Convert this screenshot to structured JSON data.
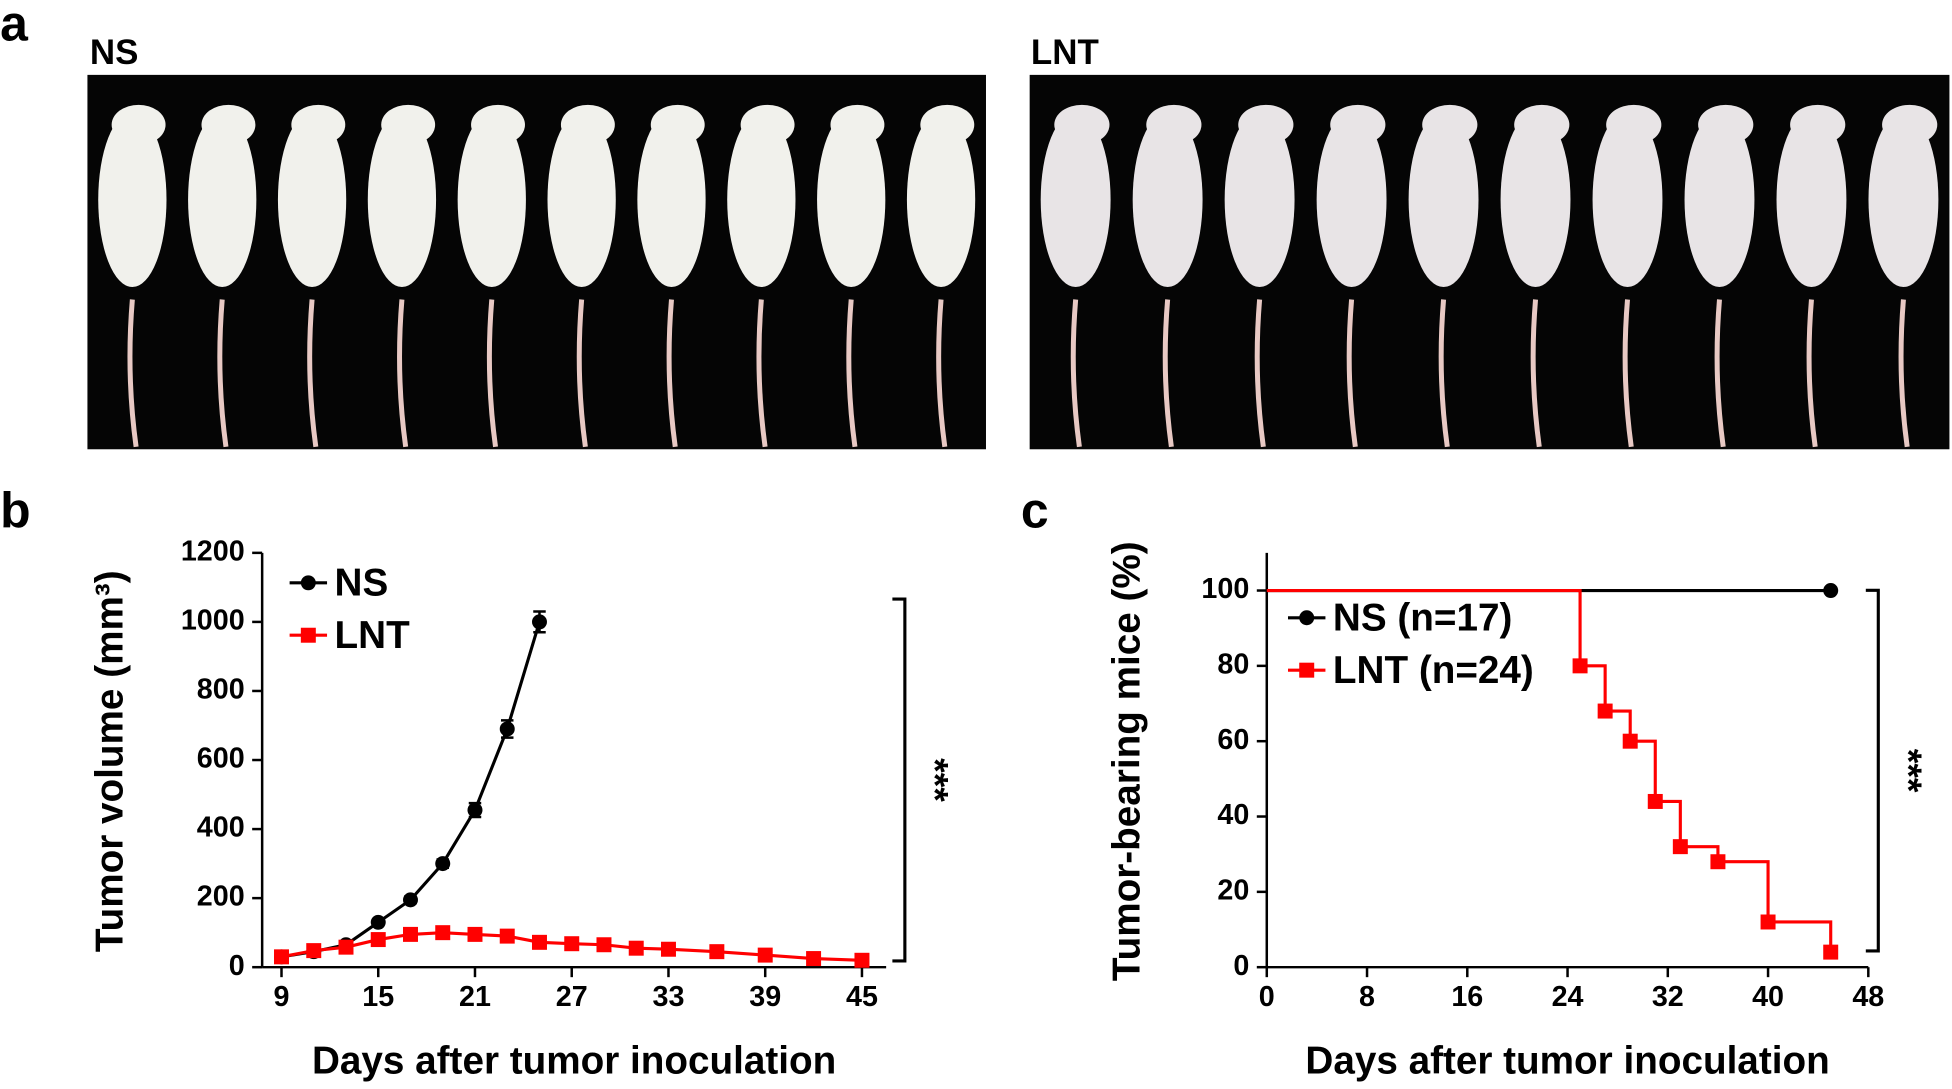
{
  "panel_labels": [
    "a",
    "b",
    "c"
  ],
  "photos": [
    {
      "label": "NS"
    },
    {
      "label": "LNT"
    }
  ],
  "chart_data": [
    {
      "type": "line",
      "x_label": "Days after tumor inoculation",
      "y_label": "Tumor volume (mm³)",
      "xlim": [
        7.8,
        46.5
      ],
      "xticks": [
        9,
        15,
        21,
        27,
        33,
        39,
        45
      ],
      "ylim": [
        0,
        1200
      ],
      "yticks": [
        0,
        200,
        400,
        600,
        800,
        1000,
        1200
      ],
      "legend": "upper left",
      "annotation": "***",
      "series": [
        {
          "name": "NS",
          "color": "#000000",
          "marker": "circle",
          "x": [
            9,
            11,
            13,
            15,
            17,
            19,
            21,
            23,
            25
          ],
          "values": [
            30,
            45,
            65,
            130,
            195,
            300,
            455,
            690,
            1000
          ],
          "errors": [
            5,
            6,
            6,
            8,
            10,
            12,
            20,
            25,
            30
          ]
        },
        {
          "name": "LNT",
          "color": "#ff0000",
          "marker": "square",
          "x": [
            9,
            11,
            13,
            15,
            17,
            19,
            21,
            23,
            25,
            27,
            29,
            31,
            33,
            36,
            39,
            42,
            45
          ],
          "values": [
            30,
            48,
            58,
            80,
            95,
            100,
            95,
            90,
            72,
            68,
            65,
            55,
            52,
            45,
            35,
            25,
            20
          ],
          "errors": [
            8,
            8,
            10,
            10,
            12,
            12,
            12,
            10,
            10,
            8,
            8,
            8,
            8,
            8,
            6,
            6,
            6
          ]
        }
      ]
    },
    {
      "type": "step",
      "x_label": "Days after tumor inoculation",
      "y_label": "Tumor-bearing mice (%)",
      "xlim": [
        0,
        48
      ],
      "xticks": [
        0,
        8,
        16,
        24,
        32,
        40,
        48
      ],
      "ylim": [
        0,
        110
      ],
      "yticks": [
        0,
        20,
        40,
        60,
        80,
        100
      ],
      "legend": "upper left",
      "annotation": "***",
      "series": [
        {
          "name": "NS (n=17)",
          "color": "#000000",
          "marker": "circle",
          "x": [
            0,
            45
          ],
          "values": [
            100,
            100
          ]
        },
        {
          "name": "LNT (n=24)",
          "color": "#ff0000",
          "marker": "square",
          "x": [
            0,
            25,
            27,
            29,
            31,
            33,
            36,
            40,
            45
          ],
          "values": [
            100,
            80,
            68,
            60,
            44,
            32,
            28,
            12,
            4
          ]
        }
      ]
    }
  ]
}
